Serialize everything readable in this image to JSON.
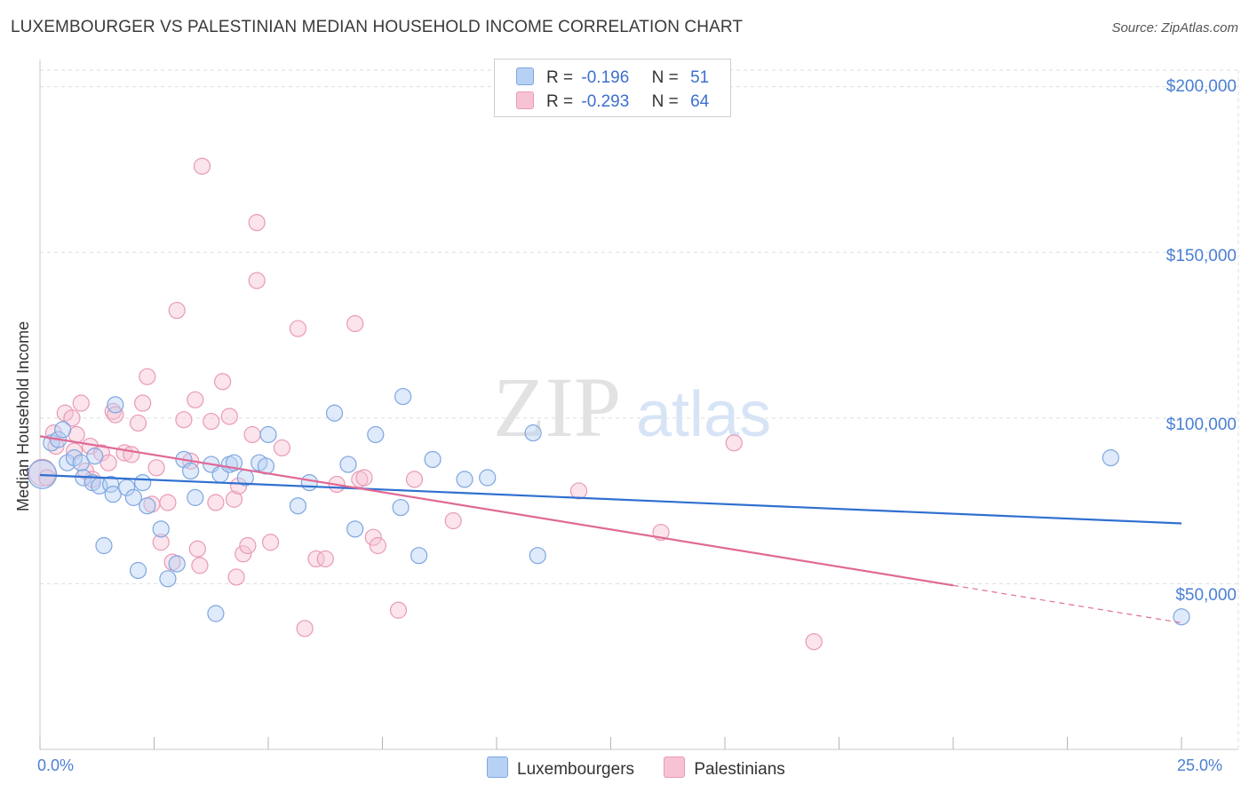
{
  "header": {
    "title": "LUXEMBOURGER VS PALESTINIAN MEDIAN HOUSEHOLD INCOME CORRELATION CHART",
    "source": "Source: ZipAtlas.com"
  },
  "legend": {
    "series1": {
      "r_label": "R =",
      "r_value": "-0.196",
      "n_label": "N =",
      "n_value": "51"
    },
    "series2": {
      "r_label": "R =",
      "r_value": "-0.293",
      "n_label": "N =",
      "n_value": "64"
    }
  },
  "bottom_legend": {
    "series1": "Luxembourgers",
    "series2": "Palestinians"
  },
  "watermark": {
    "zip": "ZIP",
    "atlas": "atlas"
  },
  "colors": {
    "blue_fill": "#b7d1f5",
    "blue_stroke": "#7ea6e0",
    "blue_line": "#2f6fd0",
    "pink_fill": "#f7c3d4",
    "pink_stroke": "#e99ab5",
    "pink_line": "#e06a95",
    "tick_text": "#4a7fd4",
    "grid": "#dedede"
  },
  "chart_data": {
    "type": "scatter",
    "title": "LUXEMBOURGER VS PALESTINIAN MEDIAN HOUSEHOLD INCOME CORRELATION CHART",
    "xlabel": "",
    "ylabel": "Median Household Income",
    "xlim": [
      0,
      25
    ],
    "ylim": [
      0,
      205000
    ],
    "x_tick_labels": [
      "0.0%",
      "25.0%"
    ],
    "y_tick_labels": [
      "$50,000",
      "$100,000",
      "$150,000",
      "$200,000"
    ],
    "y_ticks": [
      50000,
      100000,
      150000,
      200000
    ],
    "grid": true,
    "legend_position": "top-center",
    "series": [
      {
        "name": "Luxembourgers",
        "r": -0.196,
        "n": 51,
        "trend": {
          "x": [
            0.0,
            25.0
          ],
          "y": [
            82800,
            68200
          ]
        },
        "points": [
          [
            0.05,
            83000
          ],
          [
            0.25,
            92500
          ],
          [
            0.4,
            93500
          ],
          [
            0.5,
            96500
          ],
          [
            0.6,
            86500
          ],
          [
            0.75,
            88000
          ],
          [
            0.9,
            86500
          ],
          [
            0.95,
            82000
          ],
          [
            1.15,
            80500
          ],
          [
            1.2,
            88500
          ],
          [
            1.3,
            79500
          ],
          [
            1.55,
            80000
          ],
          [
            1.6,
            77000
          ],
          [
            1.65,
            104000
          ],
          [
            1.4,
            61500
          ],
          [
            1.9,
            79000
          ],
          [
            2.05,
            76000
          ],
          [
            2.25,
            80500
          ],
          [
            2.35,
            73500
          ],
          [
            2.15,
            54000
          ],
          [
            2.65,
            66500
          ],
          [
            2.8,
            51500
          ],
          [
            3.0,
            56000
          ],
          [
            3.15,
            87500
          ],
          [
            3.3,
            84000
          ],
          [
            3.4,
            76000
          ],
          [
            3.75,
            86000
          ],
          [
            3.95,
            83000
          ],
          [
            4.15,
            86000
          ],
          [
            4.25,
            86500
          ],
          [
            3.85,
            41000
          ],
          [
            4.5,
            82000
          ],
          [
            4.8,
            86500
          ],
          [
            4.95,
            85500
          ],
          [
            5.0,
            95000
          ],
          [
            5.65,
            73500
          ],
          [
            5.9,
            80500
          ],
          [
            6.45,
            101500
          ],
          [
            6.75,
            86000
          ],
          [
            6.9,
            66500
          ],
          [
            7.35,
            95000
          ],
          [
            7.9,
            73000
          ],
          [
            7.95,
            106500
          ],
          [
            8.3,
            58500
          ],
          [
            8.6,
            87500
          ],
          [
            9.3,
            81500
          ],
          [
            9.8,
            82000
          ],
          [
            10.8,
            95500
          ],
          [
            10.9,
            58500
          ],
          [
            23.45,
            88000
          ],
          [
            25.0,
            40000
          ]
        ]
      },
      {
        "name": "Palestinians",
        "r": -0.293,
        "n": 64,
        "trend": {
          "x": [
            0.0,
            20.0
          ],
          "y": [
            94500,
            49500
          ]
        },
        "trend_dashed": {
          "x": [
            20.0,
            25.0
          ],
          "y": [
            49500,
            38200
          ]
        },
        "points": [
          [
            0.05,
            83500
          ],
          [
            0.3,
            95500
          ],
          [
            0.35,
            91500
          ],
          [
            0.55,
            101500
          ],
          [
            0.7,
            100000
          ],
          [
            0.75,
            90000
          ],
          [
            0.8,
            95000
          ],
          [
            0.9,
            104500
          ],
          [
            1.0,
            84000
          ],
          [
            1.1,
            91500
          ],
          [
            1.15,
            81500
          ],
          [
            1.35,
            89500
          ],
          [
            1.5,
            86500
          ],
          [
            1.6,
            102000
          ],
          [
            1.65,
            101000
          ],
          [
            1.85,
            89500
          ],
          [
            2.0,
            89000
          ],
          [
            2.15,
            98500
          ],
          [
            2.25,
            104500
          ],
          [
            2.35,
            112500
          ],
          [
            2.45,
            74000
          ],
          [
            2.55,
            85000
          ],
          [
            2.65,
            62500
          ],
          [
            2.8,
            74500
          ],
          [
            2.9,
            56500
          ],
          [
            3.0,
            132500
          ],
          [
            3.15,
            99500
          ],
          [
            3.3,
            87000
          ],
          [
            3.4,
            105500
          ],
          [
            3.45,
            60500
          ],
          [
            3.5,
            55500
          ],
          [
            3.75,
            99000
          ],
          [
            3.85,
            74500
          ],
          [
            4.0,
            111000
          ],
          [
            4.15,
            100500
          ],
          [
            4.25,
            75500
          ],
          [
            4.3,
            52000
          ],
          [
            4.35,
            79500
          ],
          [
            4.45,
            59000
          ],
          [
            4.55,
            61500
          ],
          [
            4.65,
            95000
          ],
          [
            4.75,
            159000
          ],
          [
            4.75,
            141500
          ],
          [
            3.55,
            176000
          ],
          [
            5.05,
            62500
          ],
          [
            5.3,
            91000
          ],
          [
            5.65,
            127000
          ],
          [
            5.8,
            36500
          ],
          [
            6.05,
            57500
          ],
          [
            6.25,
            57500
          ],
          [
            6.5,
            80000
          ],
          [
            6.9,
            128500
          ],
          [
            7.0,
            81500
          ],
          [
            7.1,
            82000
          ],
          [
            7.3,
            64000
          ],
          [
            7.4,
            61500
          ],
          [
            7.85,
            42000
          ],
          [
            8.2,
            81500
          ],
          [
            9.05,
            69000
          ],
          [
            11.8,
            78000
          ],
          [
            13.6,
            65500
          ],
          [
            15.2,
            92500
          ],
          [
            16.95,
            32500
          ],
          [
            0.15,
            82000
          ]
        ]
      }
    ]
  }
}
